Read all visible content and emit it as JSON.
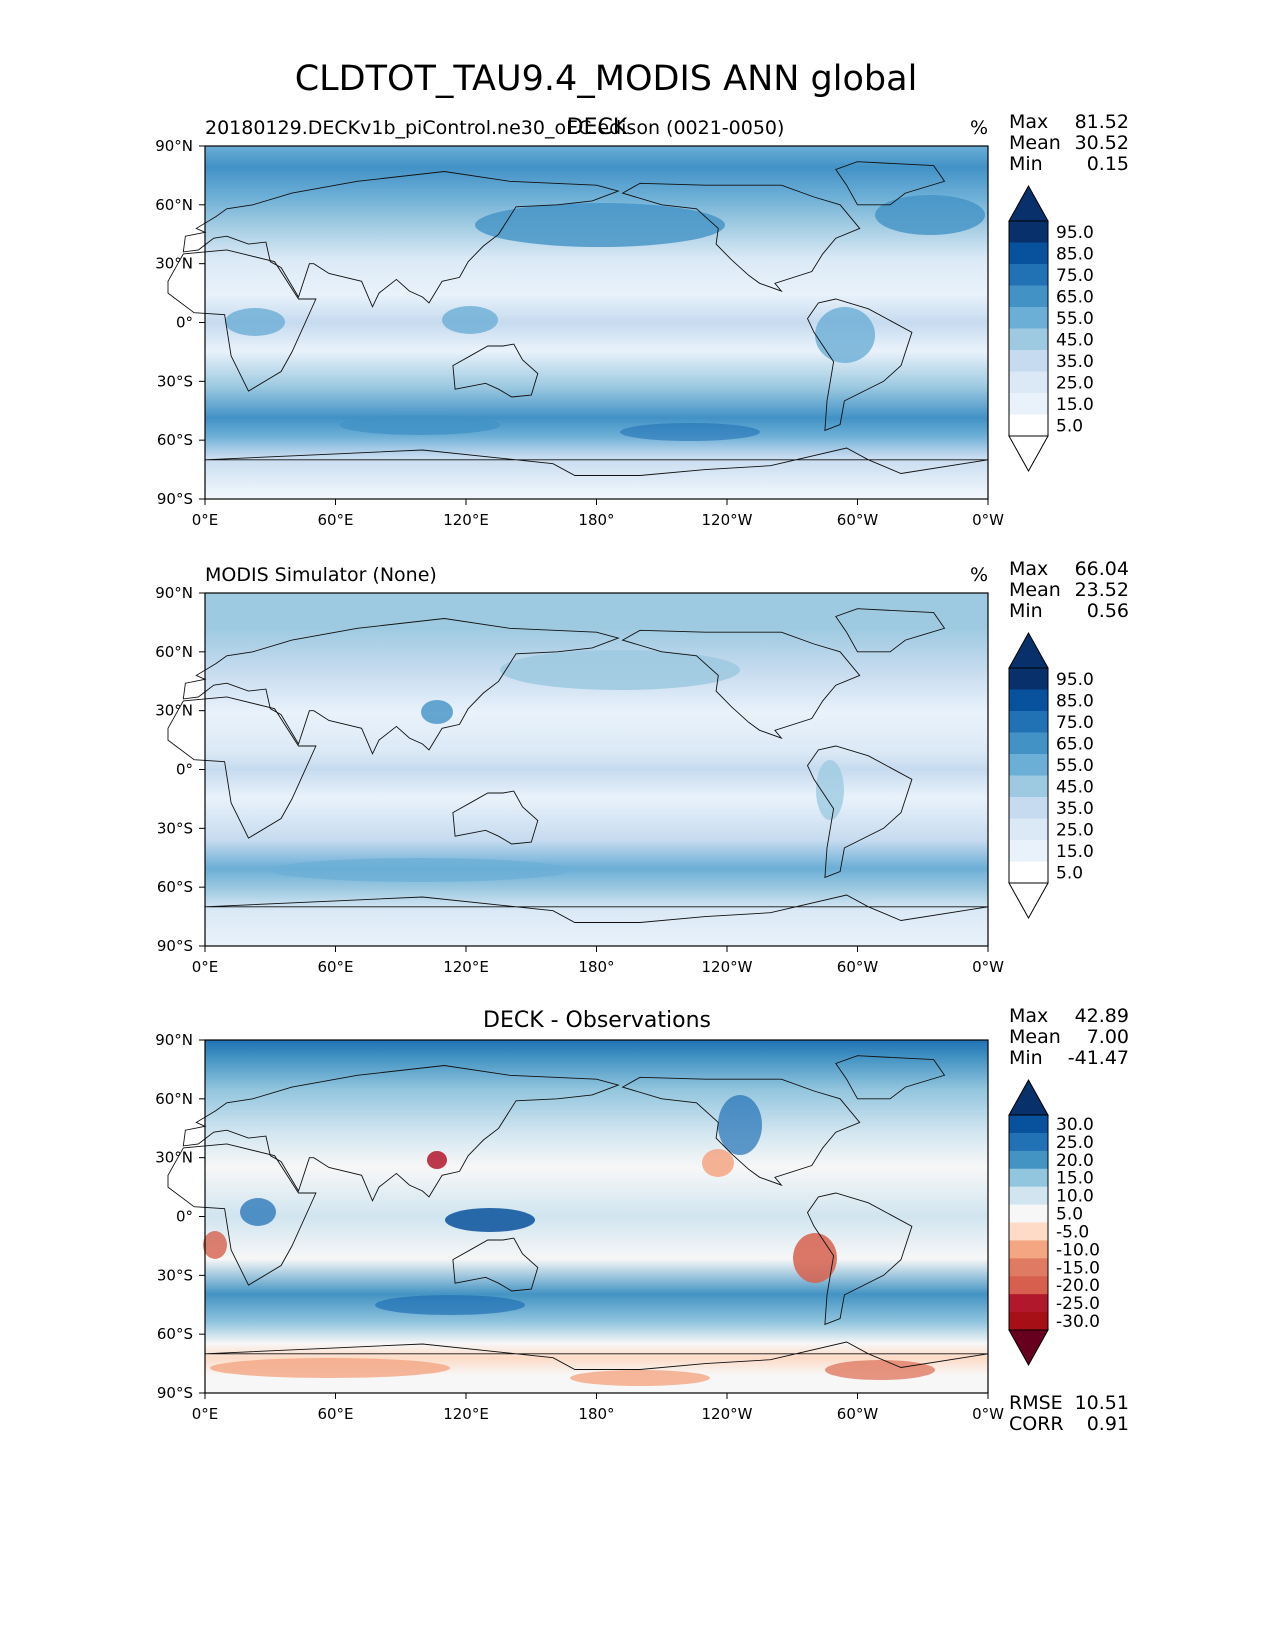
{
  "figure": {
    "title": "CLDTOT_TAU9.4_MODIS ANN global"
  },
  "axes": {
    "lat_ticks": [
      "90°N",
      "60°N",
      "30°N",
      "0°",
      "30°S",
      "60°S",
      "90°S"
    ],
    "lon_ticks": [
      "0°E",
      "60°E",
      "120°E",
      "180°",
      "120°W",
      "60°W",
      "0°W"
    ]
  },
  "chart_data": [
    {
      "type": "heatmap",
      "title": "DECK",
      "left_label": "20180129.DECKv1b_piControl.ne30_oEC.edison (0021-0050)",
      "units": "%",
      "stats": {
        "labels": [
          "Max",
          "Mean",
          "Min"
        ],
        "values": [
          "81.52",
          "30.52",
          "0.15"
        ]
      },
      "colorbar": {
        "labels": [
          "95.0",
          "85.0",
          "75.0",
          "65.0",
          "55.0",
          "45.0",
          "35.0",
          "25.0",
          "15.0",
          "5.0"
        ],
        "colors": [
          "#08306b",
          "#08519c",
          "#2171b5",
          "#4292c6",
          "#6baed6",
          "#9ecae1",
          "#c6dbef",
          "#dbe9f6",
          "#e9f2fb",
          "#ffffff"
        ],
        "ext_top": "#08306b",
        "ext_bottom": "#ffffff"
      },
      "xlim": [
        0,
        360
      ],
      "ylim": [
        -90,
        90
      ]
    },
    {
      "type": "heatmap",
      "title": "",
      "left_label": "MODIS Simulator (None)",
      "units": "%",
      "stats": {
        "labels": [
          "Max",
          "Mean",
          "Min"
        ],
        "values": [
          "66.04",
          "23.52",
          "0.56"
        ]
      },
      "colorbar": {
        "labels": [
          "95.0",
          "85.0",
          "75.0",
          "65.0",
          "55.0",
          "45.0",
          "35.0",
          "25.0",
          "15.0",
          "5.0"
        ],
        "colors": [
          "#08306b",
          "#08519c",
          "#2171b5",
          "#4292c6",
          "#6baed6",
          "#9ecae1",
          "#c6dbef",
          "#dbe9f6",
          "#e9f2fb",
          "#ffffff"
        ],
        "ext_top": "#08306b",
        "ext_bottom": "#ffffff"
      },
      "xlim": [
        0,
        360
      ],
      "ylim": [
        -90,
        90
      ]
    },
    {
      "type": "heatmap",
      "title": "DECK - Observations",
      "left_label": "",
      "units": "",
      "stats": {
        "labels": [
          "Max",
          "Mean",
          "Min"
        ],
        "values": [
          "42.89",
          "7.00",
          "-41.47"
        ]
      },
      "colorbar": {
        "labels": [
          "30.0",
          "25.0",
          "20.0",
          "15.0",
          "10.0",
          "5.0",
          "-5.0",
          "-10.0",
          "-15.0",
          "-20.0",
          "-25.0",
          "-30.0"
        ],
        "colors": [
          "#08519c",
          "#2171b5",
          "#4393c3",
          "#92c5de",
          "#d1e5f0",
          "#f7f7f7",
          "#fddbc7",
          "#f4a582",
          "#e07b63",
          "#d6604d",
          "#b2182b",
          "#a50f15"
        ],
        "ext_top": "#08306b",
        "ext_bottom": "#67001f"
      },
      "bottom_stats": {
        "labels": [
          "RMSE",
          "CORR"
        ],
        "values": [
          "10.51",
          "0.91"
        ]
      },
      "xlim": [
        0,
        360
      ],
      "ylim": [
        -90,
        90
      ]
    }
  ]
}
